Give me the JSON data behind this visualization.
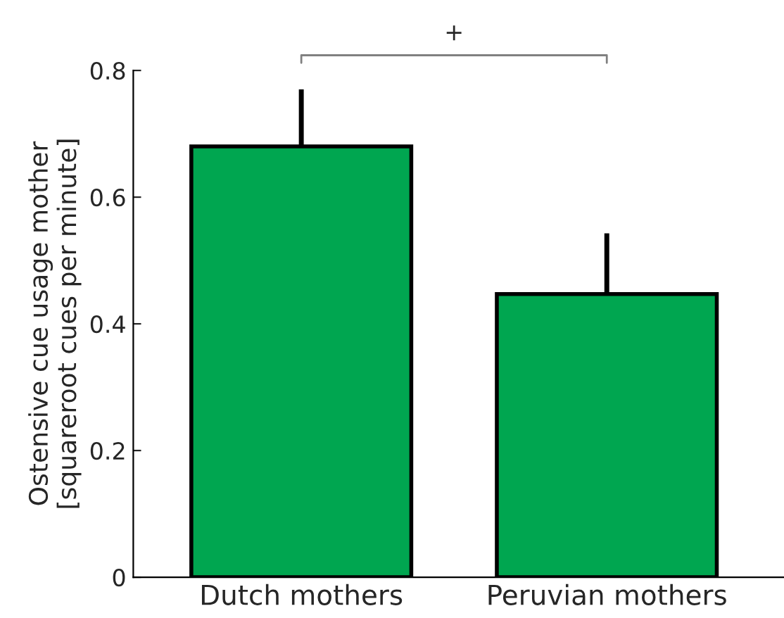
{
  "chart_data": {
    "type": "bar",
    "ylabel": "Ostensive cue usage mother\n[squareroot cues per minute]",
    "categories": [
      "Dutch mothers",
      "Peruvian mothers"
    ],
    "values": [
      0.68,
      0.447
    ],
    "errors": [
      0.09,
      0.096
    ],
    "color": "#00a650",
    "ylim": [
      0,
      0.8
    ],
    "yticks": [
      0,
      0.2,
      0.4,
      0.6,
      0.8
    ],
    "grid": false,
    "legend": false,
    "annotations": [
      "+"
    ]
  }
}
